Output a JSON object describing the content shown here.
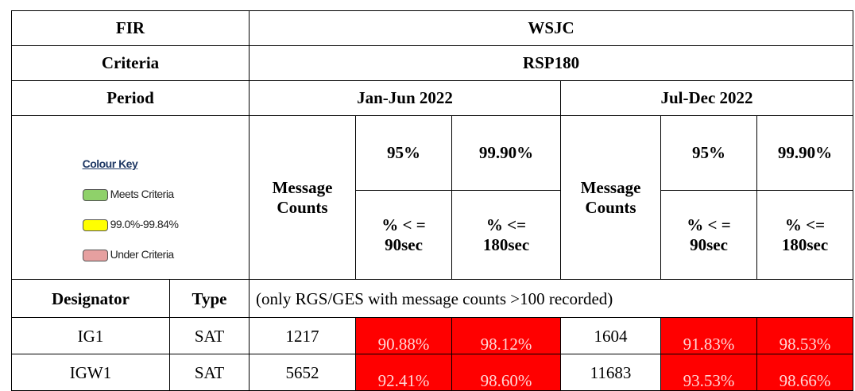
{
  "header": {
    "fir_label": "FIR",
    "fir": "WSJC",
    "criteria_label": "Criteria",
    "criteria": "RSP180",
    "period_label": "Period",
    "periods": [
      "Jan-Jun 2022",
      "Jul-Dec 2022"
    ]
  },
  "colour_key": {
    "title": "Colour Key",
    "items": [
      "Meets Criteria",
      "99.0%-99.84%",
      "Under Criteria"
    ]
  },
  "columns": {
    "message_counts": "Message\nCounts",
    "p95": "95%",
    "p999": "99.90%",
    "p95_sub": "% < =\n90sec",
    "p999_sub": "% <=\n180sec",
    "designator": "Designator",
    "type": "Type",
    "note": "(only RGS/GES with message counts >100 recorded)"
  },
  "rows": [
    [
      "IG1",
      "SAT",
      "1217",
      "90.88%",
      "98.12%",
      "1604",
      "91.83%",
      "98.53%"
    ],
    [
      "IGW1",
      "SAT",
      "5652",
      "92.41%",
      "98.60%",
      "11683",
      "93.53%",
      "98.66%"
    ]
  ]
}
